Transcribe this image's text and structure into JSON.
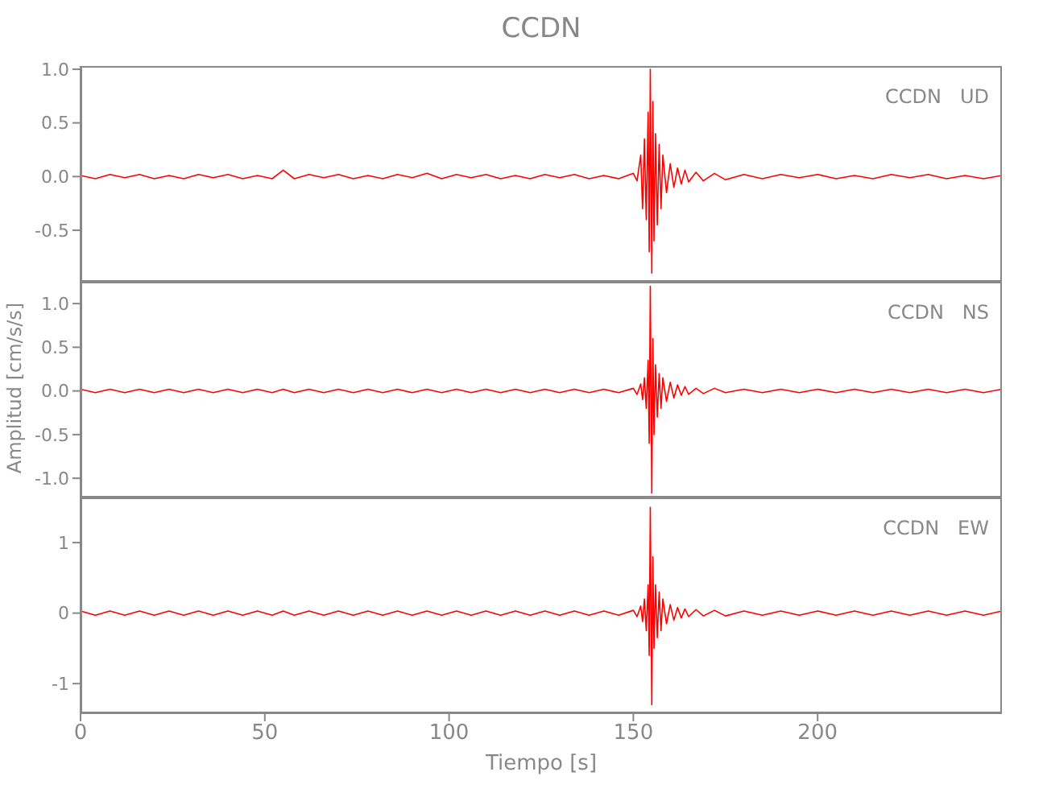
{
  "chart_data": [
    {
      "type": "line",
      "title": "CCDN",
      "annotations": [
        "CCDN   UD"
      ],
      "tick_labels": "y",
      "x": [
        0,
        4,
        8,
        12,
        16,
        20,
        24,
        28,
        32,
        36,
        40,
        44,
        48,
        52,
        55,
        58,
        62,
        66,
        70,
        74,
        78,
        82,
        86,
        90,
        94,
        98,
        102,
        106,
        110,
        114,
        118,
        122,
        126,
        130,
        134,
        138,
        142,
        146,
        150,
        151,
        152,
        152.5,
        153,
        153.5,
        154,
        154.3,
        154.6,
        155,
        155.3,
        155.6,
        156,
        156.5,
        157,
        157.5,
        158,
        159,
        160,
        161,
        162,
        163,
        164,
        165,
        167,
        169,
        172,
        175,
        180,
        185,
        190,
        195,
        200,
        205,
        210,
        215,
        220,
        225,
        230,
        235,
        240,
        245,
        250
      ],
      "series": [
        {
          "color": "#ff0000",
          "values": [
            0.01,
            -0.02,
            0.02,
            -0.01,
            0.02,
            -0.02,
            0.01,
            -0.02,
            0.02,
            -0.01,
            0.02,
            -0.02,
            0.01,
            -0.02,
            0.06,
            -0.02,
            0.02,
            -0.01,
            0.02,
            -0.02,
            0.01,
            -0.02,
            0.02,
            -0.01,
            0.03,
            -0.02,
            0.02,
            -0.01,
            0.02,
            -0.02,
            0.01,
            -0.02,
            0.02,
            -0.01,
            0.02,
            -0.02,
            0.01,
            -0.02,
            0.03,
            -0.04,
            0.2,
            -0.3,
            0.35,
            -0.4,
            0.6,
            -0.7,
            1.0,
            -0.9,
            0.7,
            -0.6,
            0.4,
            -0.45,
            0.3,
            -0.3,
            0.2,
            -0.15,
            0.12,
            -0.1,
            0.08,
            -0.07,
            0.06,
            -0.05,
            0.04,
            -0.04,
            0.03,
            -0.03,
            0.02,
            -0.02,
            0.02,
            -0.01,
            0.02,
            -0.02,
            0.01,
            -0.02,
            0.02,
            -0.01,
            0.02,
            -0.02,
            0.01,
            -0.02,
            0.01
          ]
        }
      ],
      "xlim": [
        0,
        250
      ],
      "xticks": [
        0,
        50,
        100,
        150,
        200
      ],
      "ylim": [
        -0.98,
        1.03
      ],
      "yticks": [
        -0.5,
        {
          "value": 0,
          "label": "0.0"
        },
        0.5,
        {
          "value": 1,
          "label": "1.0"
        }
      ]
    },
    {
      "type": "line",
      "ylabel": "Amplitud [cm/s/s]",
      "annotations": [
        "CCDN   NS"
      ],
      "tick_labels": "y",
      "x": [
        0,
        4,
        8,
        12,
        16,
        20,
        24,
        28,
        32,
        36,
        40,
        44,
        48,
        52,
        55,
        58,
        62,
        66,
        70,
        74,
        78,
        82,
        86,
        90,
        94,
        98,
        102,
        106,
        110,
        114,
        118,
        122,
        126,
        130,
        134,
        138,
        142,
        146,
        150,
        151,
        152,
        152.5,
        153,
        153.5,
        154,
        154.3,
        154.6,
        155,
        155.3,
        155.6,
        156,
        156.5,
        157,
        157.5,
        158,
        159,
        160,
        161,
        162,
        163,
        164,
        165,
        167,
        169,
        172,
        175,
        180,
        185,
        190,
        195,
        200,
        205,
        210,
        215,
        220,
        225,
        230,
        235,
        240,
        245,
        250
      ],
      "series": [
        {
          "color": "#ff0000",
          "values": [
            0.02,
            -0.02,
            0.02,
            -0.02,
            0.02,
            -0.02,
            0.02,
            -0.02,
            0.02,
            -0.02,
            0.02,
            -0.02,
            0.02,
            -0.02,
            0.02,
            -0.02,
            0.02,
            -0.02,
            0.02,
            -0.02,
            0.02,
            -0.02,
            0.02,
            -0.02,
            0.02,
            -0.02,
            0.02,
            -0.02,
            0.02,
            -0.02,
            0.02,
            -0.02,
            0.02,
            -0.02,
            0.02,
            -0.02,
            0.02,
            -0.02,
            0.03,
            -0.04,
            0.08,
            -0.1,
            0.15,
            -0.2,
            0.35,
            -0.6,
            1.2,
            -1.17,
            0.6,
            -0.5,
            0.3,
            -0.3,
            0.2,
            -0.2,
            0.15,
            -0.12,
            0.1,
            -0.08,
            0.07,
            -0.05,
            0.05,
            -0.04,
            0.03,
            -0.03,
            0.03,
            -0.02,
            0.02,
            -0.02,
            0.02,
            -0.02,
            0.02,
            -0.02,
            0.02,
            -0.02,
            0.02,
            -0.02,
            0.02,
            -0.02,
            0.02,
            -0.02,
            0.02
          ]
        }
      ],
      "xlim": [
        0,
        250
      ],
      "xticks": [
        0,
        50,
        100,
        150,
        200
      ],
      "ylim": [
        -1.22,
        1.25
      ],
      "yticks": [
        {
          "value": -1,
          "label": "-1.0"
        },
        -0.5,
        {
          "value": 0,
          "label": "0.0"
        },
        0.5,
        {
          "value": 1,
          "label": "1.0"
        }
      ]
    },
    {
      "type": "line",
      "xlabel": "Tiempo [s]",
      "annotations": [
        "CCDN   EW"
      ],
      "x": [
        0,
        4,
        8,
        12,
        16,
        20,
        24,
        28,
        32,
        36,
        40,
        44,
        48,
        52,
        55,
        58,
        62,
        66,
        70,
        74,
        78,
        82,
        86,
        90,
        94,
        98,
        102,
        106,
        110,
        114,
        118,
        122,
        126,
        130,
        134,
        138,
        142,
        146,
        150,
        151,
        152,
        152.5,
        153,
        153.5,
        154,
        154.3,
        154.6,
        155,
        155.3,
        155.6,
        156,
        156.5,
        157,
        157.5,
        158,
        159,
        160,
        161,
        162,
        163,
        164,
        165,
        167,
        169,
        172,
        175,
        180,
        185,
        190,
        195,
        200,
        205,
        210,
        215,
        220,
        225,
        230,
        235,
        240,
        245,
        250
      ],
      "series": [
        {
          "color": "#ff0000",
          "values": [
            0.03,
            -0.03,
            0.03,
            -0.03,
            0.03,
            -0.03,
            0.03,
            -0.03,
            0.03,
            -0.03,
            0.03,
            -0.03,
            0.03,
            -0.03,
            0.03,
            -0.03,
            0.03,
            -0.03,
            0.03,
            -0.03,
            0.03,
            -0.03,
            0.03,
            -0.03,
            0.03,
            -0.03,
            0.03,
            -0.03,
            0.03,
            -0.03,
            0.03,
            -0.03,
            0.03,
            -0.03,
            0.03,
            -0.03,
            0.03,
            -0.03,
            0.04,
            -0.05,
            0.1,
            -0.12,
            0.2,
            -0.25,
            0.4,
            -0.6,
            1.5,
            -1.3,
            0.8,
            -0.5,
            0.4,
            -0.35,
            0.3,
            -0.25,
            0.2,
            -0.15,
            0.12,
            -0.1,
            0.08,
            -0.07,
            0.06,
            -0.05,
            0.05,
            -0.04,
            0.04,
            -0.04,
            0.03,
            -0.03,
            0.03,
            -0.03,
            0.03,
            -0.03,
            0.03,
            -0.03,
            0.03,
            -0.03,
            0.03,
            -0.03,
            0.03,
            -0.03,
            0.03
          ]
        }
      ],
      "xlim": [
        0,
        250
      ],
      "xticks": [
        0,
        50,
        100,
        150,
        200
      ],
      "ylim": [
        -1.42,
        1.64
      ],
      "yticks": [
        -1,
        0,
        1
      ]
    }
  ]
}
